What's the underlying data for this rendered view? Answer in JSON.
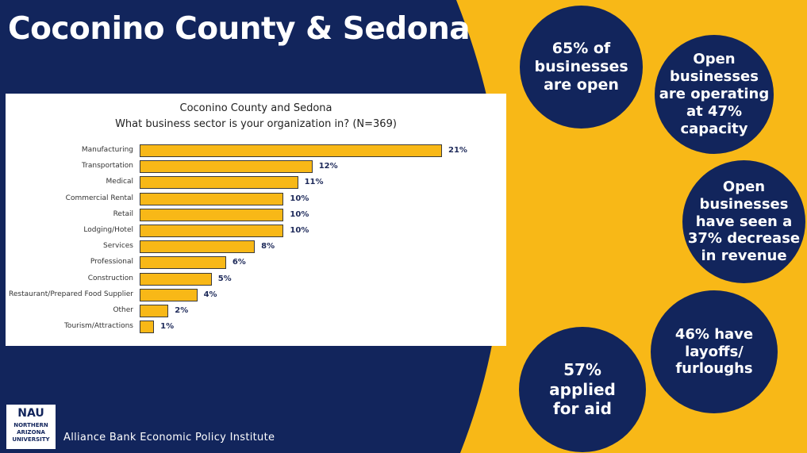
{
  "slide": {
    "title": "Coconino County & Sedona",
    "footer": "Alliance Bank Economic Policy Institute",
    "logo": {
      "main": "NAU",
      "lines": [
        "NORTHERN",
        "ARIZONA",
        "UNIVERSITY"
      ]
    },
    "colors": {
      "navy": "#12255c",
      "gold": "#f8b817",
      "value_text": "#1e2a5a"
    }
  },
  "chart_data": {
    "type": "bar",
    "orientation": "horizontal",
    "title": "Coconino County and Sedona",
    "subtitle": "What business sector is your organization in? (N=369)",
    "categories": [
      "Manufacturing",
      "Transportation",
      "Medical",
      "Commercial Rental",
      "Retail",
      "Lodging/Hotel",
      "Services",
      "Professional",
      "Construction",
      "Restaurant/Prepared Food Supplier",
      "Other",
      "Tourism/Attractions"
    ],
    "values": [
      21,
      12,
      11,
      10,
      10,
      10,
      8,
      6,
      5,
      4,
      2,
      1
    ],
    "value_labels": [
      "21%",
      "12%",
      "11%",
      "10%",
      "10%",
      "10%",
      "8%",
      "6%",
      "5%",
      "4%",
      "2%",
      "1%"
    ],
    "xlim": [
      0,
      21
    ],
    "grid": false,
    "legend": false
  },
  "stats": [
    {
      "text": "65% of businesses are open"
    },
    {
      "text": "Open businesses are operating at 47% capacity"
    },
    {
      "text": "Open businesses have seen a 37% decrease in revenue"
    },
    {
      "text": "46% have layoffs/ furloughs"
    },
    {
      "text": "57% applied for aid"
    }
  ]
}
